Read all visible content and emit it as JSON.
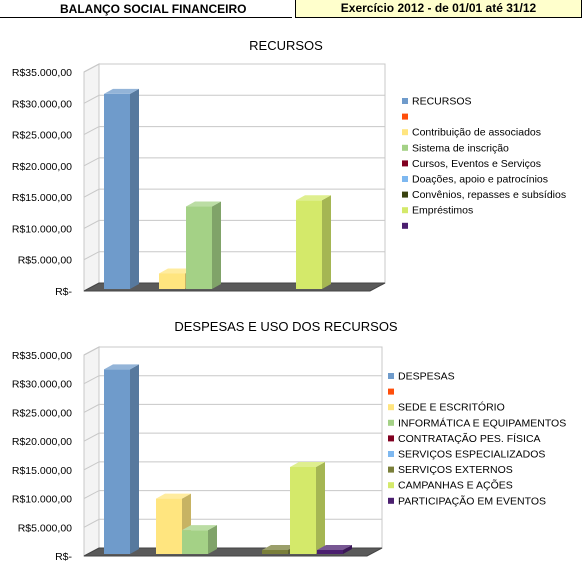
{
  "header": {
    "title": "BALANÇO SOCIAL FINANCEIRO",
    "period": "Exercício 2012  - de 01/01 até 31/12"
  },
  "chart_data": [
    {
      "type": "bar",
      "title": "RECURSOS",
      "ylim": [
        0,
        35000
      ],
      "yticks": [
        "R$35.000,00",
        "R$30.000,00",
        "R$25.000,00",
        "R$20.000,00",
        "R$15.000,00",
        "R$10.000,00",
        "R$5.000,00",
        "R$-"
      ],
      "grid": true,
      "legend_position": "right",
      "series": [
        {
          "name": "RECURSOS",
          "value": 31500,
          "color": "#6f9bcb"
        },
        {
          "name": "",
          "value": 0,
          "color": "#ff4e0b"
        },
        {
          "name": "Contribuição de associados",
          "value": 2800,
          "color": "#ffe57f"
        },
        {
          "name": "Sistema de inscrição",
          "value": 13500,
          "color": "#a4d186"
        },
        {
          "name": "Cursos, Eventos e Serviços",
          "value": 0,
          "color": "#800020"
        },
        {
          "name": "Doações, apoio e patrocínios",
          "value": 0,
          "color": "#7eb8f0"
        },
        {
          "name": "Convênios, repasses e subsídios",
          "value": 0,
          "color": "#39420f"
        },
        {
          "name": "Empréstimos",
          "value": 14500,
          "color": "#d4e96a"
        },
        {
          "name": "",
          "value": 0,
          "color": "#4b1f6f"
        }
      ]
    },
    {
      "type": "bar",
      "title": "DESPESAS E USO DOS RECURSOS",
      "ylim": [
        0,
        35000
      ],
      "yticks": [
        "R$35.000,00",
        "R$30.000,00",
        "R$25.000,00",
        "R$20.000,00",
        "R$15.000,00",
        "R$10.000,00",
        "R$5.000,00",
        "R$-"
      ],
      "grid": true,
      "legend_position": "right",
      "series": [
        {
          "name": "DESPESAS",
          "value": 32500,
          "color": "#6f9bcb"
        },
        {
          "name": "",
          "value": 0,
          "color": "#ff4e0b"
        },
        {
          "name": "SEDE E ESCRITÓRIO",
          "value": 10000,
          "color": "#ffe57f"
        },
        {
          "name": "INFORMÁTICA E EQUIPAMENTOS",
          "value": 4500,
          "color": "#a4d186"
        },
        {
          "name": "CONTRATAÇÃO PES. FÍSICA",
          "value": 0,
          "color": "#800020"
        },
        {
          "name": "SERVIÇOS ESPECIALIZADOS",
          "value": 0,
          "color": "#7eb8f0"
        },
        {
          "name": "SERVIÇOS EXTERNOS",
          "value": 1000,
          "color": "#7a7f3a"
        },
        {
          "name": "CAMPANHAS E AÇÕES",
          "value": 15500,
          "color": "#d4e96a"
        },
        {
          "name": "PARTICIPAÇÃO EM EVENTOS",
          "value": 0,
          "color": "#4b1f6f"
        }
      ]
    }
  ]
}
